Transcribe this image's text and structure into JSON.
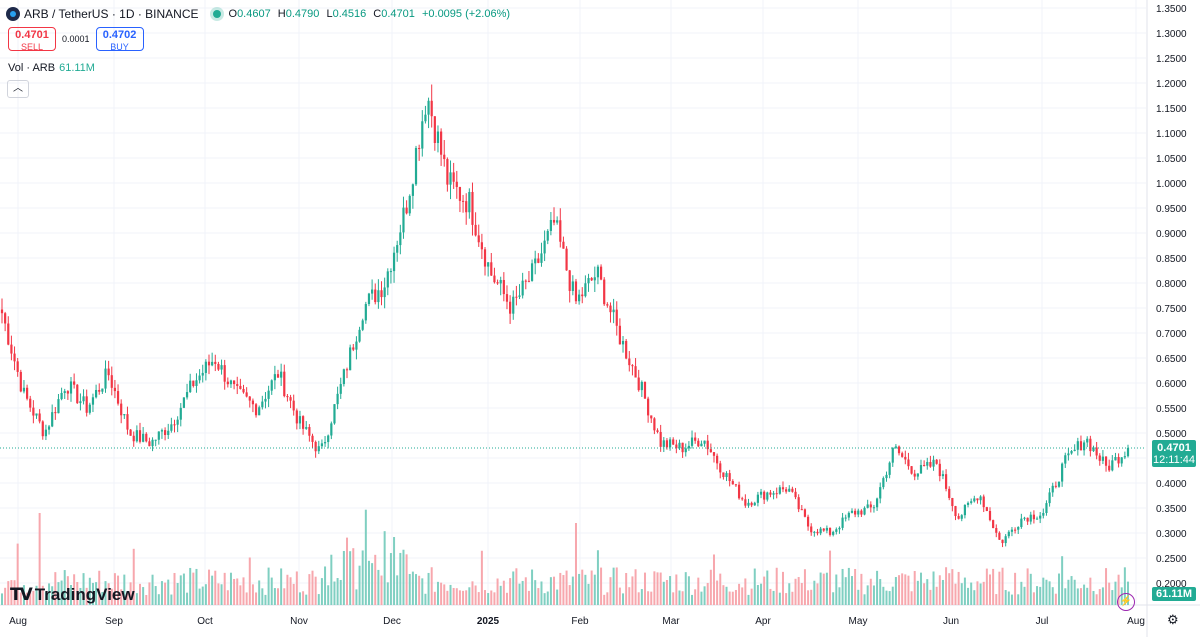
{
  "header": {
    "symbol": "ARB / TetherUS · 1D · BINANCE",
    "ohlc": {
      "o_label": "O",
      "o": "0.4607",
      "h_label": "H",
      "h": "0.4790",
      "l_label": "L",
      "l": "0.4516",
      "c_label": "C",
      "c": "0.4701",
      "change": "+0.0095 (+2.06%)"
    }
  },
  "trade": {
    "sell_price": "0.4701",
    "sell_label": "SELL",
    "spread": "0.0001",
    "buy_price": "0.4702",
    "buy_label": "BUY"
  },
  "volume": {
    "label": "Vol · ARB",
    "value": "61.11M"
  },
  "price_label": {
    "price": "0.4701",
    "countdown": "12:11:44"
  },
  "volume_label": "61.11M",
  "brand": "TradingView",
  "colors": {
    "up": "#22ab94",
    "down": "#f23645",
    "up_vol": "#7fcfc1",
    "down_vol": "#f7a7ad",
    "grid": "#f0f3fa"
  },
  "chart_data": {
    "type": "candlestick",
    "y_axis": {
      "ticks": [
        "1.3500",
        "1.3000",
        "1.2500",
        "1.2000",
        "1.1500",
        "1.1000",
        "1.0500",
        "1.0000",
        "0.9500",
        "0.9000",
        "0.8500",
        "0.8000",
        "0.7500",
        "0.7000",
        "0.6500",
        "0.6000",
        "0.5500",
        "0.5000",
        "0.4500",
        "0.4000",
        "0.3500",
        "0.3000",
        "0.2500",
        "0.2000"
      ],
      "range": [
        0.2,
        1.35
      ]
    },
    "x_axis": {
      "labels": [
        "Aug",
        "Sep",
        "Oct",
        "Nov",
        "Dec",
        "2025",
        "Feb",
        "Mar",
        "Apr",
        "May",
        "Jun",
        "Jul",
        "Aug"
      ]
    },
    "last_price": 0.4701,
    "series_keypoints": [
      {
        "t": "Aug",
        "c": 0.74
      },
      {
        "t": "",
        "c": 0.58
      },
      {
        "t": "",
        "c": 0.5
      },
      {
        "t": "",
        "c": 0.6
      },
      {
        "t": "",
        "c": 0.55
      },
      {
        "t": "",
        "c": 0.62
      },
      {
        "t": "Sep",
        "c": 0.5
      },
      {
        "t": "",
        "c": 0.48
      },
      {
        "t": "",
        "c": 0.52
      },
      {
        "t": "",
        "c": 0.6
      },
      {
        "t": "",
        "c": 0.65
      },
      {
        "t": "Oct",
        "c": 0.58
      },
      {
        "t": "",
        "c": 0.55
      },
      {
        "t": "",
        "c": 0.62
      },
      {
        "t": "",
        "c": 0.52
      },
      {
        "t": "Nov",
        "c": 0.46
      },
      {
        "t": "",
        "c": 0.6
      },
      {
        "t": "",
        "c": 0.75
      },
      {
        "t": "",
        "c": 0.8
      },
      {
        "t": "",
        "c": 0.95
      },
      {
        "t": "Dec",
        "c": 1.18
      },
      {
        "t": "",
        "c": 1.0
      },
      {
        "t": "",
        "c": 0.96
      },
      {
        "t": "",
        "c": 0.82
      },
      {
        "t": "",
        "c": 0.75
      },
      {
        "t": "",
        "c": 0.82
      },
      {
        "t": "2025",
        "c": 0.92
      },
      {
        "t": "",
        "c": 0.76
      },
      {
        "t": "",
        "c": 0.82
      },
      {
        "t": "",
        "c": 0.7
      },
      {
        "t": "",
        "c": 0.6
      },
      {
        "t": "Feb",
        "c": 0.48
      },
      {
        "t": "",
        "c": 0.47
      },
      {
        "t": "",
        "c": 0.49
      },
      {
        "t": "Mar",
        "c": 0.42
      },
      {
        "t": "",
        "c": 0.36
      },
      {
        "t": "",
        "c": 0.38
      },
      {
        "t": "",
        "c": 0.39
      },
      {
        "t": "Apr",
        "c": 0.31
      },
      {
        "t": "",
        "c": 0.3
      },
      {
        "t": "",
        "c": 0.34
      },
      {
        "t": "May",
        "c": 0.35
      },
      {
        "t": "",
        "c": 0.47
      },
      {
        "t": "",
        "c": 0.42
      },
      {
        "t": "",
        "c": 0.44
      },
      {
        "t": "Jun",
        "c": 0.33
      },
      {
        "t": "",
        "c": 0.38
      },
      {
        "t": "",
        "c": 0.28
      },
      {
        "t": "Jul",
        "c": 0.33
      },
      {
        "t": "",
        "c": 0.34
      },
      {
        "t": "",
        "c": 0.44
      },
      {
        "t": "",
        "c": 0.49
      },
      {
        "t": "",
        "c": 0.43
      },
      {
        "t": "Aug",
        "c": 0.4701
      }
    ]
  }
}
